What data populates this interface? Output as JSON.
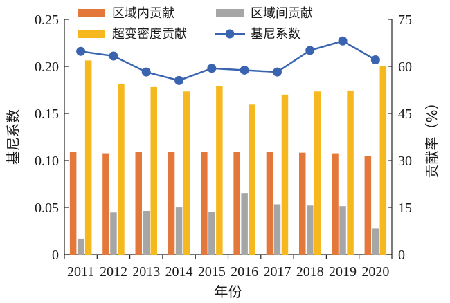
{
  "chart_data": {
    "type": "bar",
    "categories": [
      "2011",
      "2012",
      "2013",
      "2014",
      "2015",
      "2016",
      "2017",
      "2018",
      "2019",
      "2020"
    ],
    "xlabel": "年份",
    "ylabel": "基尼系数",
    "y2label": "贡献率（%）",
    "ylim": [
      0,
      0.25
    ],
    "y2lim": [
      0,
      75
    ],
    "yticks": [
      "0",
      "0.05",
      "0.10",
      "0.15",
      "0.20",
      "0.25"
    ],
    "y2ticks": [
      "0",
      "15",
      "30",
      "45",
      "60",
      "75"
    ],
    "grid": false,
    "legend_position": "top",
    "series": [
      {
        "name": "区域内贡献",
        "type": "bar",
        "axis": "right",
        "color": "#E4783A",
        "values": [
          32.8,
          32.3,
          32.7,
          32.7,
          32.7,
          32.7,
          32.8,
          32.5,
          32.3,
          31.5
        ]
      },
      {
        "name": "区域间贡献",
        "type": "bar",
        "axis": "right",
        "color": "#A6A6A6",
        "values": [
          5.1,
          13.4,
          13.9,
          15.2,
          13.6,
          19.6,
          16.0,
          15.6,
          15.4,
          8.3
        ]
      },
      {
        "name": "超变密度贡献",
        "type": "bar",
        "axis": "right",
        "color": "#F5B81E",
        "values": [
          61.9,
          54.3,
          53.4,
          52.0,
          53.6,
          47.8,
          51.0,
          52.0,
          52.3,
          60.2
        ]
      },
      {
        "name": "基尼系数",
        "type": "line",
        "axis": "left",
        "color": "#3B64B0",
        "values": [
          0.216,
          0.211,
          0.194,
          0.185,
          0.198,
          0.196,
          0.194,
          0.217,
          0.227,
          0.207
        ]
      }
    ]
  }
}
